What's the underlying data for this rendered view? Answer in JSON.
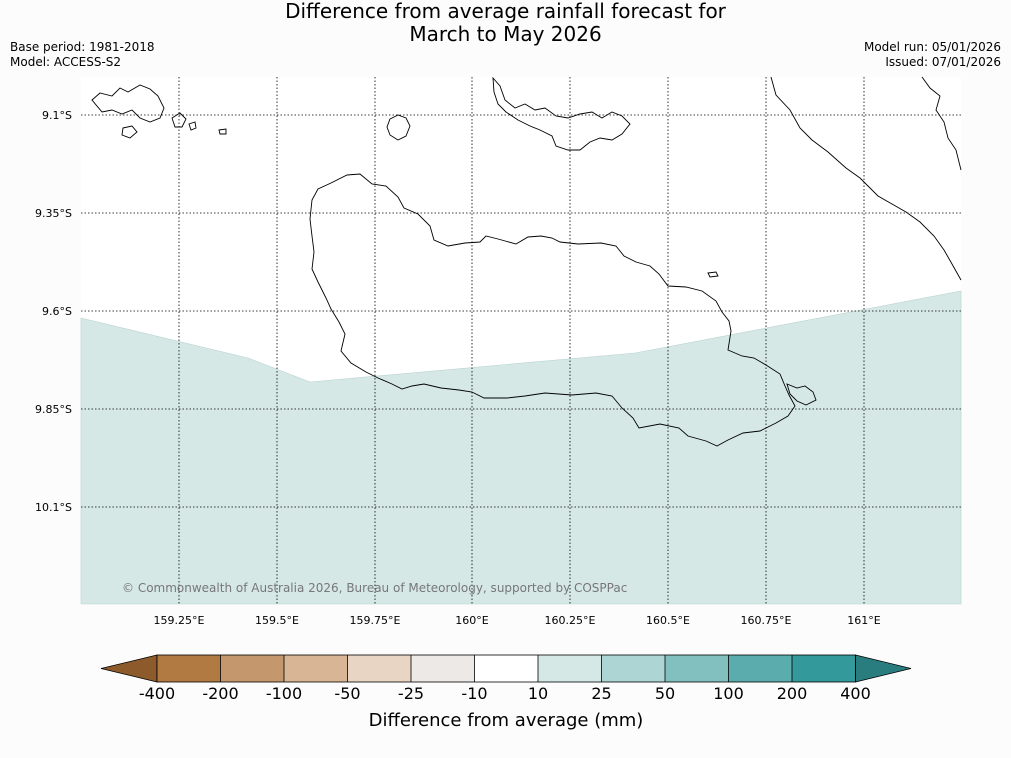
{
  "title": {
    "line1": "Difference from average rainfall forecast for",
    "line2": "March to May 2026"
  },
  "meta": {
    "base_period": "Base period: 1981-2018",
    "model": "Model: ACCESS-S2",
    "model_run": "Model run: 05/01/2026",
    "issued": "Issued: 07/01/2026"
  },
  "map": {
    "latitude_labels": [
      "9.1°S",
      "9.35°S",
      "9.6°S",
      "9.85°S",
      "10.1°S"
    ],
    "longitude_labels": [
      "159.25°E",
      "159.5°E",
      "159.75°E",
      "160°E",
      "160.25°E",
      "160.5°E",
      "160.75°E",
      "161°E"
    ],
    "latitudes": [
      -9.1,
      -9.35,
      -9.6,
      -9.85,
      -10.1
    ],
    "longitudes": [
      159.25,
      159.5,
      159.75,
      160.0,
      160.25,
      160.5,
      160.75,
      161.0
    ],
    "extent": {
      "lon_min": 159.0,
      "lon_max": 161.25,
      "lat_max": -8.95,
      "lat_min": -10.3
    },
    "shaded_category": "10 to 25 mm",
    "shaded_color": "#d5e8e6",
    "copyright": "© Commonwealth of Australia 2026, Bureau of Meteorology, supported by COSPPac"
  },
  "colorbar": {
    "title": "Difference from average (mm)",
    "ticks": [
      "-400",
      "-200",
      "-100",
      "-50",
      "-25",
      "-10",
      "10",
      "25",
      "50",
      "100",
      "200",
      "400"
    ],
    "colors": [
      "#8c5a2b",
      "#b07a42",
      "#c5976c",
      "#d7b595",
      "#e8d5c4",
      "#ede9e6",
      "#ffffff",
      "#d5e8e6",
      "#acd5d4",
      "#82c0bf",
      "#5aadac",
      "#33999a",
      "#2a7d7e"
    ]
  }
}
